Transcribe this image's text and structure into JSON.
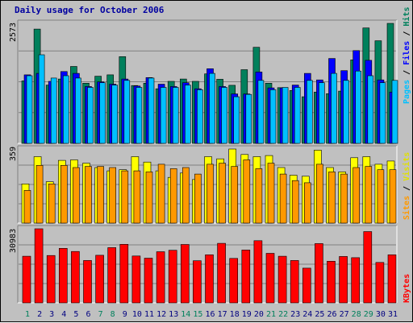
{
  "chart_data": [
    {
      "type": "bar",
      "panel": "hits-files-pages",
      "title": "Daily usage for October 2006",
      "x": [
        "1",
        "2",
        "3",
        "4",
        "5",
        "6",
        "7",
        "8",
        "9",
        "10",
        "11",
        "12",
        "13",
        "14",
        "15",
        "16",
        "17",
        "18",
        "19",
        "20",
        "21",
        "22",
        "23",
        "24",
        "25",
        "26",
        "27",
        "28",
        "29",
        "30",
        "31"
      ],
      "weekend_days": [
        "1",
        "7",
        "8",
        "14",
        "15",
        "21",
        "22",
        "28",
        "29"
      ],
      "ymax_label": "2573",
      "ylabel_parts": [
        "Pages",
        "/",
        "Files",
        "/",
        "Hits"
      ],
      "series": [
        {
          "name": "Hits",
          "color": "#00805c",
          "values": [
            1340,
            2450,
            1250,
            1380,
            1650,
            1290,
            1440,
            1470,
            1860,
            1240,
            1290,
            1170,
            1330,
            1380,
            1330,
            1490,
            1375,
            1245,
            1580,
            2060,
            1290,
            1195,
            1135,
            1000,
            1100,
            1065,
            1120,
            1790,
            2475,
            2200,
            2573
          ]
        },
        {
          "name": "Files",
          "color": "#0000ff",
          "values": [
            1470,
            1500,
            1330,
            1540,
            1500,
            1220,
            1320,
            1270,
            1380,
            1230,
            1410,
            1270,
            1220,
            1300,
            1170,
            1600,
            1220,
            1060,
            1060,
            1530,
            1190,
            1190,
            1250,
            1500,
            1360,
            1820,
            1560,
            1990,
            1780,
            1360,
            1100
          ]
        },
        {
          "name": "Pages",
          "color": "#00c0ff",
          "values": [
            1450,
            1900,
            1400,
            1450,
            1400,
            1200,
            1300,
            1250,
            1350,
            1200,
            1400,
            1200,
            1200,
            1250,
            1150,
            1500,
            1200,
            1000,
            1050,
            1350,
            1150,
            1200,
            1200,
            1350,
            1300,
            1500,
            1350,
            1550,
            1450,
            1300,
            1350
          ]
        }
      ]
    },
    {
      "type": "bar",
      "panel": "visits-sites",
      "ymax_label": "359",
      "ylabel_parts": [
        "Sites",
        "/",
        "Visits"
      ],
      "series": [
        {
          "name": "Visits",
          "color": "#ffff00",
          "values": [
            180,
            305,
            190,
            288,
            290,
            275,
            255,
            240,
            245,
            305,
            280,
            240,
            210,
            230,
            200,
            305,
            295,
            340,
            315,
            305,
            310,
            255,
            220,
            215,
            335,
            255,
            235,
            300,
            305,
            270,
            285
          ]
        },
        {
          "name": "Sites",
          "color": "#ff9900",
          "values": [
            150,
            265,
            180,
            265,
            255,
            260,
            260,
            255,
            240,
            240,
            235,
            270,
            250,
            255,
            225,
            270,
            275,
            260,
            290,
            250,
            275,
            225,
            195,
            185,
            270,
            235,
            225,
            255,
            260,
            245,
            245
          ]
        }
      ]
    },
    {
      "type": "bar",
      "panel": "kbytes",
      "ymax_label": "30983",
      "ylabel": "KBytes",
      "series": [
        {
          "name": "KBytes",
          "color": "#ff0000",
          "values": [
            19500,
            30983,
            19800,
            22800,
            21500,
            17700,
            19900,
            23100,
            24500,
            19600,
            18700,
            21400,
            22000,
            24400,
            17600,
            20100,
            24900,
            18600,
            22100,
            26000,
            20700,
            19500,
            17700,
            14500,
            24800,
            17400,
            19400,
            18900,
            29800,
            16900,
            20100
          ]
        }
      ]
    }
  ]
}
